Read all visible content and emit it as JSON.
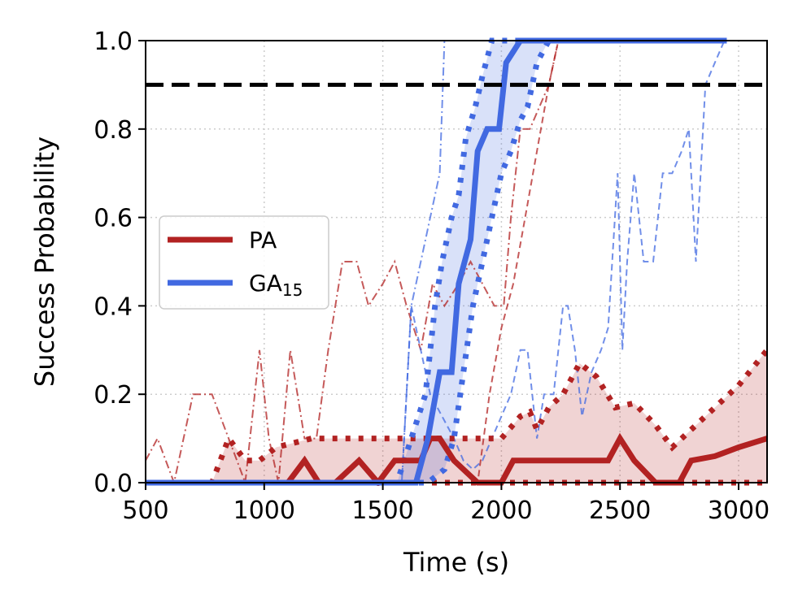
{
  "chart_data": {
    "type": "line",
    "title": "",
    "xlabel": "Time (s)",
    "ylabel": "Success Probability",
    "xlim": [
      500,
      3120
    ],
    "ylim": [
      0,
      1.0
    ],
    "xticks": [
      500,
      1000,
      1500,
      2000,
      2500,
      3000
    ],
    "yticks": [
      0.0,
      0.2,
      0.4,
      0.6,
      0.8,
      1.0
    ],
    "xtick_labels": [
      "500",
      "1000",
      "1500",
      "2000",
      "2500",
      "3000"
    ],
    "ytick_labels": [
      "0.0",
      "0.2",
      "0.4",
      "0.6",
      "0.8",
      "1.0"
    ],
    "grid": true,
    "threshold": {
      "y": 0.9,
      "style": "dashed",
      "color": "#000000"
    },
    "legend": {
      "placement": "center-left",
      "entries": [
        {
          "name": "PA",
          "sub": "",
          "color": "#b22222"
        },
        {
          "name": "GA",
          "sub": "15",
          "color": "#4169e1"
        }
      ]
    },
    "series": [
      {
        "name": "PA",
        "color": "#b22222",
        "mean": {
          "x": [
            500,
            1100,
            1170,
            1230,
            1300,
            1400,
            1480,
            1550,
            1600,
            1660,
            1700,
            1740,
            1800,
            1900,
            2000,
            2050,
            2150,
            2250,
            2350,
            2450,
            2500,
            2560,
            2650,
            2750,
            2800,
            2900,
            3000,
            3120
          ],
          "y": [
            0,
            0,
            0.05,
            0,
            0,
            0.05,
            0,
            0.05,
            0.05,
            0.05,
            0.1,
            0.1,
            0.05,
            0,
            0,
            0.05,
            0.05,
            0.05,
            0.05,
            0.05,
            0.1,
            0.05,
            0,
            0,
            0.05,
            0.06,
            0.08,
            0.1
          ]
        },
        "ci_upper": {
          "x": [
            500,
            780,
            850,
            920,
            980,
            1050,
            1200,
            1300,
            1400,
            1500,
            1650,
            1700,
            1800,
            1900,
            2000,
            2080,
            2120,
            2150,
            2200,
            2260,
            2330,
            2400,
            2480,
            2560,
            2650,
            2720,
            2800,
            2900,
            3000,
            3120
          ],
          "y": [
            0,
            0,
            0.1,
            0.05,
            0.05,
            0.08,
            0.1,
            0.1,
            0.1,
            0.1,
            0.1,
            0.1,
            0.1,
            0.1,
            0.1,
            0.15,
            0.16,
            0.12,
            0.17,
            0.2,
            0.27,
            0.24,
            0.17,
            0.18,
            0.13,
            0.08,
            0.12,
            0.17,
            0.22,
            0.3
          ]
        },
        "ci_lower": {
          "x": [
            500,
            1600,
            1700,
            1800,
            2000,
            2500,
            3000,
            3120
          ],
          "y": [
            0,
            0,
            0,
            0,
            0,
            0,
            0,
            0
          ]
        },
        "bound_a": {
          "x": [
            500,
            550,
            620,
            700,
            780,
            850,
            920,
            980,
            1020,
            1060,
            1110,
            1170,
            1220,
            1270,
            1330,
            1390,
            1440,
            1500,
            1550,
            1600,
            1660,
            1710,
            1760,
            1820,
            1870,
            1920,
            1970,
            2010,
            2040,
            2080,
            2120,
            2160,
            2200,
            2240
          ],
          "y": [
            0.05,
            0.1,
            0,
            0.2,
            0.2,
            0.1,
            0,
            0.3,
            0.1,
            0,
            0.3,
            0.1,
            0.1,
            0.3,
            0.5,
            0.5,
            0.4,
            0.45,
            0.5,
            0.4,
            0.3,
            0.45,
            0.4,
            0.45,
            0.5,
            0.45,
            0.4,
            0.4,
            0.6,
            0.8,
            0.8,
            0.85,
            0.9,
            1.0
          ]
        },
        "bound_b": {
          "x": [
            500,
            1750,
            1800,
            1850,
            1900,
            1950,
            2000,
            2050,
            2100,
            2150,
            2200,
            2240
          ],
          "y": [
            0,
            0,
            0,
            0,
            0,
            0.2,
            0.35,
            0.45,
            0.6,
            0.75,
            0.9,
            1.0
          ]
        }
      },
      {
        "name": "GA15",
        "color": "#4169e1",
        "mean": {
          "x": [
            500,
            1640,
            1690,
            1740,
            1790,
            1820,
            1870,
            1900,
            1940,
            1990,
            2020,
            2080,
            2950
          ],
          "y": [
            0,
            0,
            0.1,
            0.25,
            0.25,
            0.45,
            0.55,
            0.75,
            0.8,
            0.8,
            0.95,
            1.0,
            1.0
          ]
        },
        "ci_upper": {
          "x": [
            500,
            1560,
            1620,
            1680,
            1720,
            1750,
            1790,
            1820,
            1850,
            1890,
            1920,
            1960,
            2000,
            2040,
            2060,
            2150,
            2950
          ],
          "y": [
            0,
            0,
            0.1,
            0.2,
            0.4,
            0.5,
            0.6,
            0.65,
            0.78,
            0.85,
            0.92,
            1.0,
            1.0,
            1.0,
            1.0,
            1.0,
            1.0
          ]
        },
        "ci_lower": {
          "x": [
            500,
            1690,
            1760,
            1800,
            1840,
            1880,
            1920,
            1960,
            2000,
            2040,
            2080,
            2110,
            2150,
            2200,
            2950
          ],
          "y": [
            0,
            0,
            0.03,
            0.1,
            0.25,
            0.4,
            0.5,
            0.6,
            0.7,
            0.75,
            0.82,
            0.85,
            0.95,
            1.0,
            1.0
          ]
        },
        "bound_a": {
          "x": [
            500,
            1580,
            1620,
            1660,
            1700,
            1740,
            1760,
            1790
          ],
          "y": [
            0,
            0,
            0.4,
            0.5,
            0.6,
            0.7,
            1.0,
            1.0
          ]
        },
        "bound_b": {
          "x": [
            500,
            1580,
            1620,
            1660,
            1700,
            1800,
            1840,
            1880,
            1920,
            1960,
            2000,
            2040,
            2080,
            2110,
            2150,
            2180,
            2220,
            2260,
            2280,
            2310,
            2340,
            2380,
            2420,
            2450,
            2490,
            2510,
            2530,
            2560,
            2600,
            2640,
            2680,
            2720,
            2760,
            2790,
            2820,
            2860,
            2900,
            2940,
            2950
          ],
          "y": [
            0,
            0,
            0.4,
            0.3,
            0.2,
            0.1,
            0.05,
            0.03,
            0.05,
            0.1,
            0.15,
            0.2,
            0.3,
            0.3,
            0.1,
            0.2,
            0.2,
            0.4,
            0.4,
            0.3,
            0.15,
            0.25,
            0.3,
            0.35,
            0.7,
            0.3,
            0.5,
            0.7,
            0.5,
            0.5,
            0.7,
            0.7,
            0.75,
            0.8,
            0.5,
            0.9,
            0.95,
            1.0,
            1.0
          ]
        }
      }
    ]
  }
}
